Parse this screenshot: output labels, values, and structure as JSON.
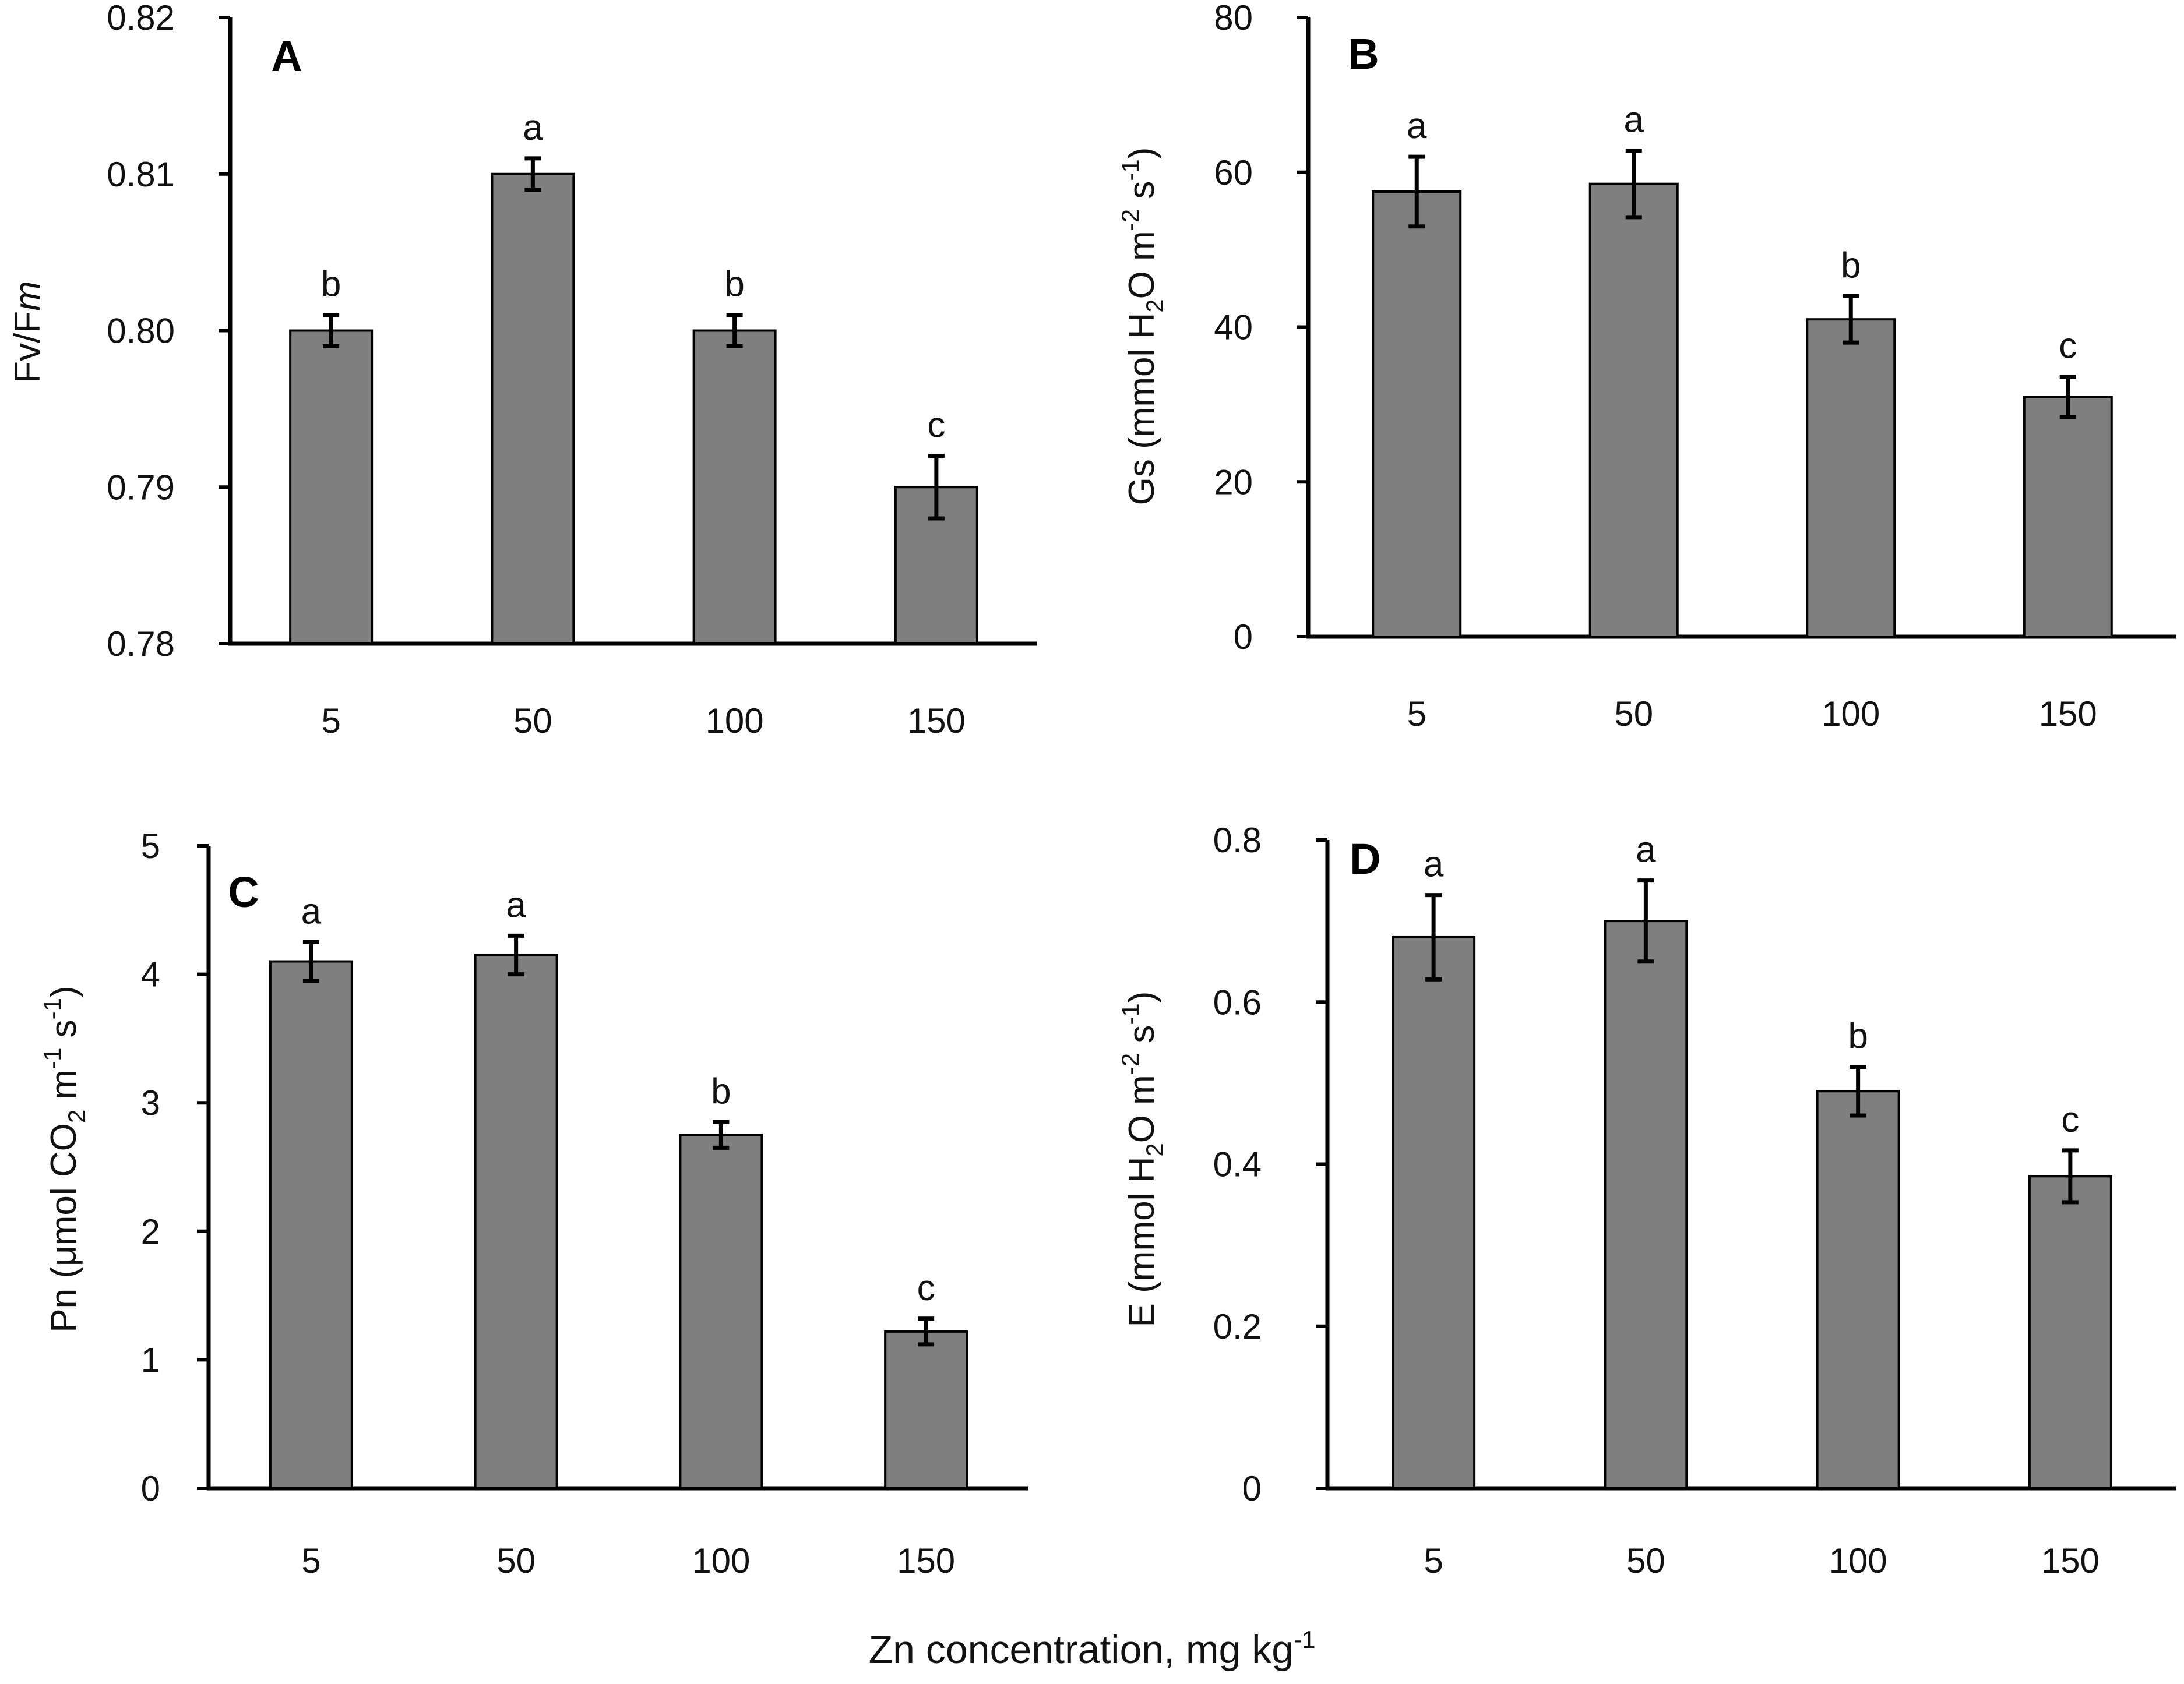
{
  "figure": {
    "x_axis_title": "Zn concentration, mg kg",
    "x_axis_title_sup": "-1"
  },
  "chart_data": [
    {
      "panel": "A",
      "type": "bar",
      "categories": [
        "5",
        "50",
        "100",
        "150"
      ],
      "values": [
        0.8,
        0.81,
        0.8,
        0.79
      ],
      "errors": [
        0.001,
        0.001,
        0.001,
        0.002
      ],
      "significance": [
        "b",
        "a",
        "b",
        "c"
      ],
      "ylabel": [
        {
          "t": "Fv/F"
        },
        {
          "t": "m",
          "style": "italic"
        }
      ],
      "ylim": [
        0.78,
        0.82
      ],
      "yticks": [
        0.78,
        0.79,
        0.8,
        0.81,
        0.82
      ],
      "ytick_labels": [
        "0.78",
        "0.79",
        "0.80",
        "0.81",
        "0.82"
      ],
      "bar_color": "#7f7f7f"
    },
    {
      "panel": "B",
      "type": "bar",
      "categories": [
        "5",
        "50",
        "100",
        "150"
      ],
      "values": [
        57.5,
        58.5,
        41,
        31
      ],
      "errors": [
        4.5,
        4.3,
        3.0,
        2.6
      ],
      "significance": [
        "a",
        "a",
        "b",
        "c"
      ],
      "ylabel": [
        {
          "t": "Gs (mmol H"
        },
        {
          "t": "2",
          "shift": "sub"
        },
        {
          "t": "O m"
        },
        {
          "t": "-2",
          "shift": "super"
        },
        {
          "t": " s"
        },
        {
          "t": "-1",
          "shift": "super"
        },
        {
          "t": ")"
        }
      ],
      "ylim": [
        0,
        80
      ],
      "yticks": [
        0,
        20,
        40,
        60,
        80
      ],
      "ytick_labels": [
        "0",
        "20",
        "40",
        "60",
        "80"
      ],
      "bar_color": "#7f7f7f"
    },
    {
      "panel": "C",
      "type": "bar",
      "categories": [
        "5",
        "50",
        "100",
        "150"
      ],
      "values": [
        4.1,
        4.15,
        2.75,
        1.22
      ],
      "errors": [
        0.15,
        0.15,
        0.1,
        0.1
      ],
      "significance": [
        "a",
        "a",
        "b",
        "c"
      ],
      "ylabel": [
        {
          "t": "Pn (μmol CO"
        },
        {
          "t": "2",
          "shift": "sub"
        },
        {
          "t": " m"
        },
        {
          "t": "-1",
          "shift": "super"
        },
        {
          "t": " s"
        },
        {
          "t": "-1",
          "shift": "super"
        },
        {
          "t": ")"
        }
      ],
      "ylim": [
        0,
        5
      ],
      "yticks": [
        0,
        1,
        2,
        3,
        4,
        5
      ],
      "ytick_labels": [
        "0",
        "1",
        "2",
        "3",
        "4",
        "5"
      ],
      "bar_color": "#7f7f7f"
    },
    {
      "panel": "D",
      "type": "bar",
      "categories": [
        "5",
        "50",
        "100",
        "150"
      ],
      "values": [
        0.68,
        0.7,
        0.49,
        0.385
      ],
      "errors": [
        0.052,
        0.05,
        0.03,
        0.032
      ],
      "significance": [
        "a",
        "a",
        "b",
        "c"
      ],
      "ylabel": [
        {
          "t": "E (mmol H"
        },
        {
          "t": "2",
          "shift": "sub"
        },
        {
          "t": "O m"
        },
        {
          "t": "-2",
          "shift": "super"
        },
        {
          "t": " s"
        },
        {
          "t": "-1",
          "shift": "super"
        },
        {
          "t": ")"
        }
      ],
      "ylim": [
        0,
        0.8
      ],
      "yticks": [
        0,
        0.2,
        0.4,
        0.6,
        0.8
      ],
      "ytick_labels": [
        "0",
        "0.2",
        "0.4",
        "0.6",
        "0.8"
      ],
      "bar_color": "#7f7f7f"
    }
  ]
}
